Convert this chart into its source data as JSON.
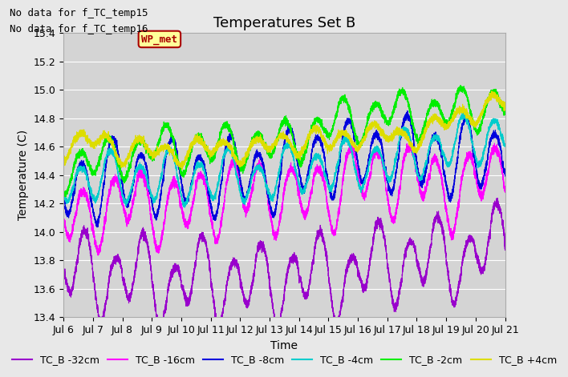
{
  "title": "Temperatures Set B",
  "ylabel": "Temperature (C)",
  "xlabel": "Time",
  "annotations": [
    "No data for f_TC_temp15",
    "No data for f_TC_temp16"
  ],
  "wp_met_label": "WP_met",
  "wp_met_color": "#aa0000",
  "wp_met_bg": "#ffff99",
  "x_tick_labels": [
    "Jul 6",
    "Jul 7",
    "Jul 8",
    "Jul 9",
    "Jul 10",
    "Jul 11",
    "Jul 12",
    "Jul 13",
    "Jul 14",
    "Jul 15",
    "Jul 16",
    "Jul 17",
    "Jul 18",
    "Jul 19",
    "Jul 20",
    "Jul 21"
  ],
  "ylim": [
    13.4,
    15.4
  ],
  "yticks": [
    13.4,
    13.6,
    13.8,
    14.0,
    14.2,
    14.4,
    14.6,
    14.8,
    15.0,
    15.2,
    15.4
  ],
  "series": [
    {
      "label": "TC_B -32cm",
      "color": "#9900cc",
      "base": 13.72,
      "trend": 0.03,
      "amp": 0.13,
      "dip_amp": 0.22,
      "noise": 0.015
    },
    {
      "label": "TC_B -16cm",
      "color": "#ff00ff",
      "base": 14.05,
      "trend": 0.025,
      "amp": 0.1,
      "dip_amp": 0.2,
      "noise": 0.015
    },
    {
      "label": "TC_B -8cm",
      "color": "#0000dd",
      "base": 14.28,
      "trend": 0.03,
      "amp": 0.08,
      "dip_amp": 0.22,
      "noise": 0.012
    },
    {
      "label": "TC_B -4cm",
      "color": "#00cccc",
      "base": 14.38,
      "trend": 0.03,
      "amp": 0.06,
      "dip_amp": 0.15,
      "noise": 0.01
    },
    {
      "label": "TC_B -2cm",
      "color": "#00ee00",
      "base": 14.43,
      "trend": 0.03,
      "amp": 0.06,
      "dip_amp": 0.12,
      "noise": 0.012
    },
    {
      "label": "TC_B +4cm",
      "color": "#dddd00",
      "base": 14.6,
      "trend": 0.038,
      "amp": 0.04,
      "dip_amp": 0.06,
      "noise": 0.012
    }
  ],
  "n_points": 7200,
  "days": 15,
  "background_color": "#e8e8e8",
  "plot_bg_color": "#d4d4d4",
  "grid_color": "#ffffff",
  "title_fontsize": 13,
  "axis_fontsize": 10,
  "tick_fontsize": 9,
  "legend_fontsize": 9,
  "annotation_fontsize": 9
}
